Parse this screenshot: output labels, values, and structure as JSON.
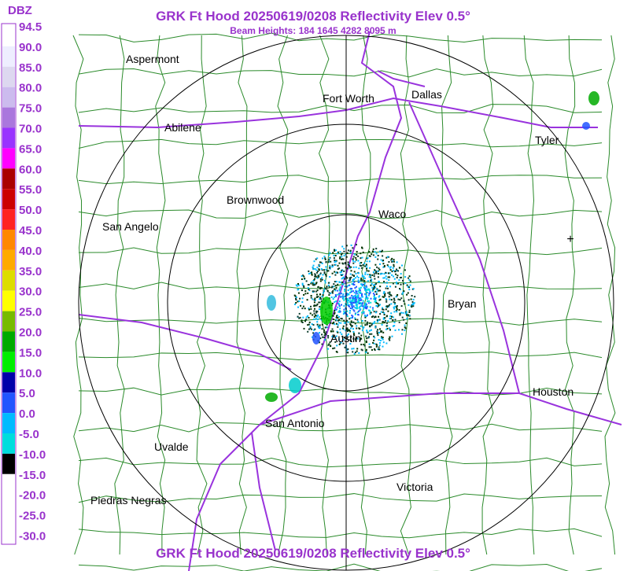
{
  "header": {
    "title": "GRK Ft Hood 20250619/0208 Reflectivity Elev 0.5°",
    "subtitle": "Beam Heights: 184 1645 4282 8095 m",
    "footer": "GRK Ft Hood 20250619/0208 Reflectivity Elev 0.5°"
  },
  "legend": {
    "unit": "DBZ",
    "labels": [
      "94.5",
      "90.0",
      "85.0",
      "80.0",
      "75.0",
      "70.0",
      "65.0",
      "60.0",
      "55.0",
      "50.0",
      "45.0",
      "40.0",
      "35.0",
      "30.0",
      "25.0",
      "20.0",
      "15.0",
      "10.0",
      "5.0",
      "0.0",
      "-5.0",
      "-10.0",
      "-15.0",
      "-20.0",
      "-25.0",
      "-30.0"
    ]
  },
  "places": [
    {
      "name": "Aspermont"
    },
    {
      "name": "Fort Worth"
    },
    {
      "name": "Dallas"
    },
    {
      "name": "Abilene"
    },
    {
      "name": "Tyler"
    },
    {
      "name": "Brownwood"
    },
    {
      "name": "Waco"
    },
    {
      "name": "San Angelo"
    },
    {
      "name": "Bryan"
    },
    {
      "name": "Austin"
    },
    {
      "name": "Houston"
    },
    {
      "name": "San Antonio"
    },
    {
      "name": "Uvalde"
    },
    {
      "name": "Victoria"
    },
    {
      "name": "Piedras Negras"
    }
  ]
}
